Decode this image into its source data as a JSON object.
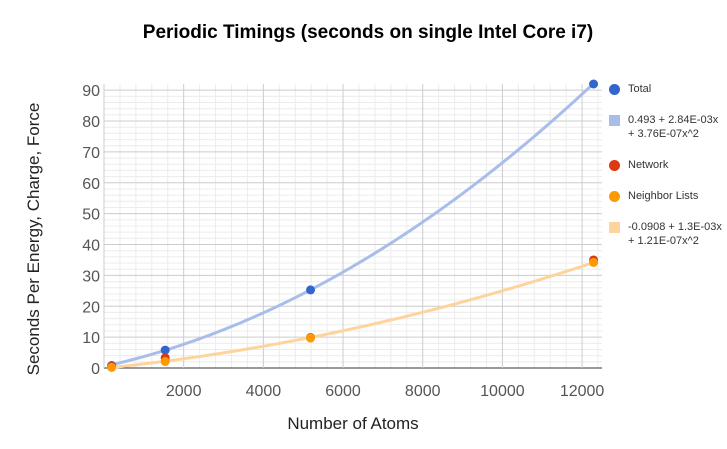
{
  "chart_data": {
    "type": "scatter",
    "title": "Periodic Timings (seconds on single Intel Core i7)",
    "xlabel": "Number of Atoms",
    "ylabel": "Seconds Per Energy, Charge, Force",
    "xlim": [
      0,
      12500
    ],
    "ylim": [
      0,
      92
    ],
    "xticks": [
      2000,
      4000,
      6000,
      8000,
      10000,
      12000
    ],
    "yticks": [
      0,
      10,
      20,
      30,
      40,
      50,
      60,
      70,
      80,
      90
    ],
    "grid": true,
    "legend_position": "right",
    "series": [
      {
        "name": "Total",
        "kind": "points",
        "color": "#3366cc",
        "x": [
          192,
          1536,
          5184,
          12288
        ],
        "y": [
          0.8,
          5.8,
          25.3,
          92
        ]
      },
      {
        "name": "0.493 + 2.84E-03x + 3.76E-07x^2",
        "kind": "trendline",
        "color": "#a9bdeb",
        "coefficients": [
          0.493,
          0.00284,
          3.76e-07
        ]
      },
      {
        "name": "Network",
        "kind": "points",
        "color": "#dc3912",
        "x": [
          192,
          1536,
          5184,
          12288
        ],
        "y": [
          0.6,
          3.3,
          9.9,
          35
        ]
      },
      {
        "name": "Neighbor Lists",
        "kind": "points",
        "color": "#ff9900",
        "x": [
          192,
          1536,
          5184,
          12288
        ],
        "y": [
          0.2,
          2.1,
          9.7,
          34.2
        ]
      },
      {
        "name": "-0.0908 + 1.3E-03x + 1.21E-07x^2",
        "kind": "trendline",
        "color": "#fdd49c",
        "coefficients": [
          -0.0908,
          0.0013,
          1.21e-07
        ]
      }
    ]
  }
}
